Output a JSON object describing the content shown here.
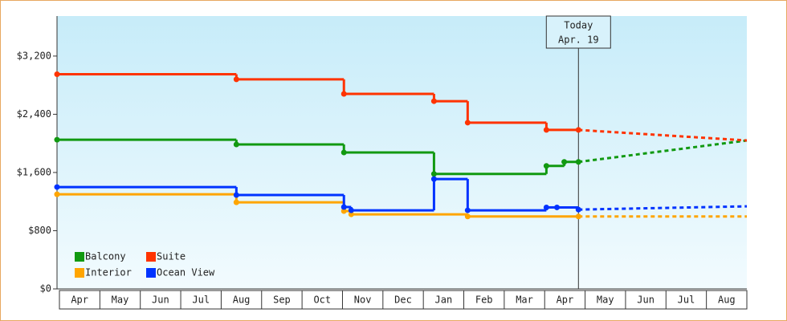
{
  "chart_data": {
    "type": "step-line",
    "categories": [
      "Apr",
      "May",
      "Jun",
      "Jul",
      "Aug",
      "Sep",
      "Oct",
      "Nov",
      "Dec",
      "Jan",
      "Feb",
      "Mar",
      "Apr",
      "May",
      "Jun",
      "Jul",
      "Aug"
    ],
    "xlim": [
      0,
      17
    ],
    "ylim": [
      0,
      3750
    ],
    "yticks": [
      {
        "value": 0,
        "label": "$0"
      },
      {
        "value": 800,
        "label": "$800"
      },
      {
        "value": 1600,
        "label": "$1,600"
      },
      {
        "value": 2400,
        "label": "$2,400"
      },
      {
        "value": 3200,
        "label": "$3,200"
      }
    ],
    "today": {
      "x": 12.85,
      "label": [
        "Today",
        "Apr. 19"
      ]
    },
    "series": [
      {
        "name": "Balcony",
        "color": "#119911",
        "x": [
          0,
          4.42,
          7.07,
          9.29,
          12.06,
          12.5,
          12.85
        ],
        "values": [
          2050,
          1985,
          1875,
          1580,
          1690,
          1745,
          1745
        ],
        "forecast": {
          "x": [
            12.85,
            17
          ],
          "values": [
            1745,
            2040
          ]
        }
      },
      {
        "name": "Suite",
        "color": "#ff3300",
        "x": [
          0,
          4.42,
          7.07,
          9.29,
          10.12,
          12.06,
          12.85
        ],
        "values": [
          2950,
          2880,
          2680,
          2580,
          2285,
          2185,
          2185
        ],
        "forecast": {
          "x": [
            12.85,
            17
          ],
          "values": [
            2185,
            2040
          ]
        }
      },
      {
        "name": "Interior",
        "color": "#ffa500",
        "x": [
          0,
          4.42,
          7.07,
          7.25,
          10.12,
          12.85
        ],
        "values": [
          1300,
          1190,
          1070,
          1025,
          995,
          995
        ],
        "forecast": {
          "x": [
            12.85,
            17
          ],
          "values": [
            995,
            995
          ]
        }
      },
      {
        "name": "Ocean View",
        "color": "#0033ff",
        "x": [
          0,
          4.42,
          7.07,
          7.25,
          9.29,
          10.12,
          12.06,
          12.32,
          12.85
        ],
        "values": [
          1400,
          1290,
          1125,
          1080,
          1510,
          1080,
          1120,
          1120,
          1090
        ],
        "forecast": {
          "x": [
            12.85,
            17
          ],
          "values": [
            1090,
            1135
          ]
        }
      }
    ]
  }
}
